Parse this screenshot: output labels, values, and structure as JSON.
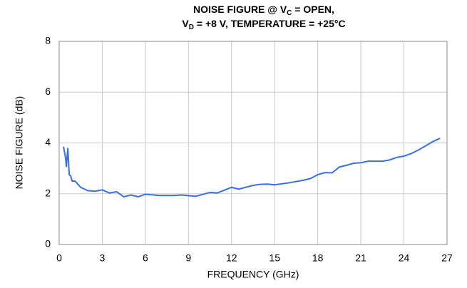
{
  "chart_data": {
    "type": "line",
    "title": [
      [
        "NOISE FIGURE @ V",
        "C",
        " = OPEN,"
      ],
      [
        "V",
        "D",
        " = +8 V, TEMPERATURE = +25°C"
      ]
    ],
    "x_label": "FREQUENCY (GHz)",
    "y_label": "NOISE FIGURE (dB)",
    "xlim": [
      0,
      27
    ],
    "xticks": [
      0,
      3,
      6,
      9,
      12,
      15,
      18,
      21,
      24,
      27
    ],
    "ylim": [
      0,
      8
    ],
    "yticks": [
      0,
      2,
      4,
      6,
      8
    ],
    "grid": true,
    "series": [
      {
        "color": "#3b6fe0",
        "x": [
          0.3,
          0.45,
          0.5,
          0.6,
          0.7,
          0.8,
          0.9,
          1.1,
          1.5,
          2,
          2.5,
          3,
          3.5,
          4,
          4.5,
          5,
          5.5,
          6,
          7,
          8,
          8.5,
          9.5,
          10.5,
          11,
          12,
          12.5,
          13.5,
          14,
          14.5,
          15,
          16,
          17,
          17.5,
          18,
          18.5,
          19,
          19.5,
          20,
          20.5,
          21,
          21.5,
          22.5,
          23,
          23.5,
          24,
          24.5,
          25,
          25.5,
          26,
          26.5
        ],
        "values": [
          3.85,
          3.4,
          3.05,
          3.8,
          2.75,
          2.7,
          2.5,
          2.5,
          2.25,
          2.12,
          2.1,
          2.15,
          2.03,
          2.08,
          1.88,
          1.95,
          1.88,
          1.98,
          1.93,
          1.93,
          1.95,
          1.9,
          2.05,
          2.03,
          2.25,
          2.18,
          2.33,
          2.37,
          2.38,
          2.35,
          2.43,
          2.53,
          2.6,
          2.75,
          2.83,
          2.82,
          3.05,
          3.12,
          3.2,
          3.22,
          3.28,
          3.28,
          3.33,
          3.43,
          3.48,
          3.58,
          3.72,
          3.88,
          4.05,
          4.18
        ]
      }
    ]
  }
}
